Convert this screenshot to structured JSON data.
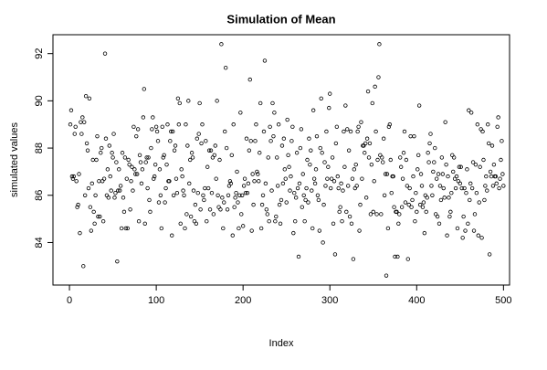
{
  "chart_data": {
    "type": "scatter",
    "title": "Simulation of Mean",
    "x_label": "Index",
    "y_label": "simulated values",
    "x": [
      1,
      2,
      3,
      4,
      5,
      6,
      7,
      8,
      9,
      10,
      11,
      12,
      13,
      14,
      15,
      16,
      17,
      18,
      19,
      20,
      21,
      22,
      23,
      24,
      25,
      26,
      27,
      28,
      29,
      30,
      31,
      32,
      33,
      34,
      35,
      36,
      37,
      38,
      39,
      40,
      41,
      42,
      43,
      44,
      45,
      46,
      47,
      48,
      49,
      50,
      51,
      52,
      53,
      54,
      55,
      56,
      57,
      58,
      59,
      60,
      61,
      62,
      63,
      64,
      65,
      66,
      67,
      68,
      69,
      70,
      71,
      72,
      73,
      74,
      75,
      76,
      77,
      78,
      79,
      80,
      81,
      82,
      83,
      84,
      85,
      86,
      87,
      88,
      89,
      90,
      91,
      92,
      93,
      94,
      95,
      96,
      97,
      98,
      99,
      100,
      101,
      102,
      103,
      104,
      105,
      106,
      107,
      108,
      109,
      110,
      111,
      112,
      113,
      114,
      115,
      116,
      117,
      118,
      119,
      120,
      121,
      122,
      123,
      124,
      125,
      126,
      127,
      128,
      129,
      130,
      131,
      132,
      133,
      134,
      135,
      136,
      137,
      138,
      139,
      140,
      141,
      142,
      143,
      144,
      145,
      146,
      147,
      148,
      149,
      150,
      151,
      152,
      153,
      154,
      155,
      156,
      157,
      158,
      159,
      160,
      161,
      162,
      163,
      164,
      165,
      166,
      167,
      168,
      169,
      170,
      171,
      172,
      173,
      174,
      175,
      176,
      177,
      178,
      179,
      180,
      181,
      182,
      183,
      184,
      185,
      186,
      187,
      188,
      189,
      190,
      191,
      192,
      193,
      194,
      195,
      196,
      197,
      198,
      199,
      200,
      201,
      202,
      203,
      204,
      205,
      206,
      207,
      208,
      209,
      210,
      211,
      212,
      213,
      214,
      215,
      216,
      217,
      218,
      219,
      220,
      221,
      222,
      223,
      224,
      225,
      226,
      227,
      228,
      229,
      230,
      231,
      232,
      233,
      234,
      235,
      236,
      237,
      238,
      239,
      240,
      241,
      242,
      243,
      244,
      245,
      246,
      247,
      248,
      249,
      250,
      251,
      252,
      253,
      254,
      255,
      256,
      257,
      258,
      259,
      260,
      261,
      262,
      263,
      264,
      265,
      266,
      267,
      268,
      269,
      270,
      271,
      272,
      273,
      274,
      275,
      276,
      277,
      278,
      279,
      280,
      281,
      282,
      283,
      284,
      285,
      286,
      287,
      288,
      289,
      290,
      291,
      292,
      293,
      294,
      295,
      296,
      297,
      298,
      299,
      300,
      301,
      302,
      303,
      304,
      305,
      306,
      307,
      308,
      309,
      310,
      311,
      312,
      313,
      314,
      315,
      316,
      317,
      318,
      319,
      320,
      321,
      322,
      323,
      324,
      325,
      326,
      327,
      328,
      329,
      330,
      331,
      332,
      333,
      334,
      335,
      336,
      337,
      338,
      339,
      340,
      341,
      342,
      343,
      344,
      345,
      346,
      347,
      348,
      349,
      350,
      351,
      352,
      353,
      354,
      355,
      356,
      357,
      358,
      359,
      360,
      361,
      362,
      363,
      364,
      365,
      366,
      367,
      368,
      369,
      370,
      371,
      372,
      373,
      374,
      375,
      376,
      377,
      378,
      379,
      380,
      381,
      382,
      383,
      384,
      385,
      386,
      387,
      388,
      389,
      390,
      391,
      392,
      393,
      394,
      395,
      396,
      397,
      398,
      399,
      400,
      401,
      402,
      403,
      404,
      405,
      406,
      407,
      408,
      409,
      410,
      411,
      412,
      413,
      414,
      415,
      416,
      417,
      418,
      419,
      420,
      421,
      422,
      423,
      424,
      425,
      426,
      427,
      428,
      429,
      430,
      431,
      432,
      433,
      434,
      435,
      436,
      437,
      438,
      439,
      440,
      441,
      442,
      443,
      444,
      445,
      446,
      447,
      448,
      449,
      450,
      451,
      452,
      453,
      454,
      455,
      456,
      457,
      458,
      459,
      460,
      461,
      462,
      463,
      464,
      465,
      466,
      467,
      468,
      469,
      470,
      471,
      472,
      473,
      474,
      475,
      476,
      477,
      478,
      479,
      480,
      481,
      482,
      483,
      484,
      485,
      486,
      487,
      488,
      489,
      490,
      491,
      492,
      493,
      494,
      495,
      496,
      497,
      498,
      499,
      500
    ],
    "values": [
      89.0,
      89.6,
      86.8,
      86.7,
      86.8,
      88.6,
      88.9,
      86.6,
      85.5,
      85.6,
      86.9,
      84.4,
      89.1,
      88.6,
      89.3,
      83.0,
      89.1,
      86.0,
      90.2,
      88.2,
      87.9,
      86.3,
      90.1,
      85.5,
      84.5,
      86.5,
      87.5,
      85.3,
      84.8,
      86.0,
      87.5,
      88.5,
      85.1,
      86.6,
      85.1,
      87.8,
      88.0,
      86.6,
      84.9,
      86.7,
      92.0,
      88.4,
      86.0,
      87.1,
      85.9,
      88.1,
      86.8,
      86.2,
      87.8,
      87.6,
      88.6,
      85.9,
      86.1,
      87.4,
      83.2,
      86.2,
      87.1,
      86.2,
      86.4,
      84.6,
      87.8,
      85.9,
      85.3,
      87.6,
      84.6,
      86.7,
      84.6,
      87.5,
      87.3,
      85.4,
      86.6,
      87.2,
      86.2,
      88.9,
      87.1,
      86.9,
      88.5,
      86.9,
      88.8,
      84.9,
      87.7,
      87.4,
      86.5,
      87.1,
      89.3,
      90.5,
      84.8,
      87.4,
      87.6,
      86.3,
      87.6,
      85.8,
      85.3,
      88.0,
      88.8,
      89.3,
      86.7,
      86.8,
      87.3,
      88.9,
      88.7,
      88.3,
      85.7,
      87.1,
      86.0,
      84.6,
      88.9,
      87.6,
      87.7,
      85.7,
      86.3,
      87.3,
      89.0,
      86.6,
      86.6,
      88.3,
      88.7,
      84.3,
      88.7,
      86.0,
      87.9,
      88.1,
      86.7,
      86.1,
      90.1,
      89.0,
      89.9,
      84.8,
      87.1,
      86.8,
      86.2,
      86.0,
      84.6,
      89.0,
      85.2,
      88.1,
      90.0,
      86.5,
      87.5,
      85.1,
      87.8,
      87.6,
      86.2,
      84.9,
      85.6,
      84.8,
      88.4,
      86.1,
      88.6,
      89.9,
      85.4,
      88.2,
      89.0,
      86.0,
      85.8,
      86.3,
      88.3,
      84.9,
      87.2,
      86.3,
      87.9,
      85.4,
      87.9,
      86.1,
      87.6,
      85.2,
      87.7,
      88.1,
      86.7,
      90.0,
      86.0,
      85.5,
      87.5,
      85.4,
      92.4,
      85.9,
      84.6,
      85.7,
      88.7,
      91.4,
      88.0,
      85.4,
      86.0,
      86.4,
      86.6,
      86.5,
      87.7,
      84.3,
      89.0,
      85.5,
      85.9,
      86.1,
      87.0,
      85.7,
      84.6,
      86.0,
      89.5,
      85.2,
      86.0,
      84.7,
      86.4,
      86.7,
      86.1,
      88.4,
      86.1,
      86.5,
      87.9,
      90.9,
      88.3,
      84.5,
      86.9,
      85.6,
      86.6,
      88.3,
      89.0,
      87.0,
      86.9,
      86.6,
      87.8,
      89.9,
      84.6,
      85.6,
      86.0,
      88.7,
      91.7,
      86.5,
      85.4,
      85.2,
      87.6,
      84.9,
      88.9,
      88.3,
      86.2,
      89.9,
      88.5,
      89.5,
      84.9,
      85.1,
      87.6,
      86.4,
      89.0,
      85.6,
      84.8,
      85.8,
      88.1,
      86.5,
      88.4,
      87.1,
      86.7,
      85.7,
      89.2,
      87.7,
      87.2,
      86.2,
      86.8,
      88.3,
      88.9,
      84.4,
      86.1,
      84.9,
      85.9,
      87.8,
      86.3,
      83.4,
      86.5,
      88.0,
      88.8,
      85.5,
      86.9,
      86.0,
      84.9,
      85.8,
      86.3,
      87.5,
      85.7,
      88.4,
      87.3,
      87.9,
      86.2,
      84.6,
      89.6,
      86.7,
      86.5,
      87.1,
      88.5,
      86.0,
      85.8,
      84.5,
      88.0,
      90.1,
      87.8,
      84.0,
      85.6,
      87.4,
      86.4,
      88.7,
      86.7,
      87.2,
      89.7,
      90.3,
      86.3,
      86.7,
      87.6,
      84.8,
      86.6,
      83.5,
      88.2,
      88.9,
      86.8,
      86.3,
      85.3,
      85.5,
      86.5,
      84.9,
      86.2,
      88.7,
      87.2,
      89.8,
      85.3,
      88.8,
      86.4,
      87.9,
      85.1,
      88.7,
      84.8,
      86.7,
      83.3,
      87.1,
      86.3,
      87.3,
      86.4,
      88.7,
      88.9,
      84.5,
      85.6,
      89.1,
      86.7,
      88.1,
      88.1,
      87.8,
      88.2,
      85.9,
      88.4,
      90.4,
      87.6,
      88.2,
      85.2,
      87.3,
      89.9,
      85.3,
      86.6,
      90.6,
      88.7,
      85.2,
      87.5,
      91.0,
      92.4,
      87.7,
      85.2,
      87.6,
      87.4,
      88.4,
      86.0,
      86.9,
      82.6,
      86.9,
      84.6,
      88.9,
      89.0,
      87.5,
      86.1,
      86.8,
      86.8,
      85.5,
      83.4,
      85.3,
      85.3,
      83.4,
      84.8,
      85.2,
      87.6,
      87.2,
      85.5,
      86.7,
      87.8,
      88.7,
      85.7,
      87.5,
      86.4,
      83.3,
      85.6,
      86.3,
      88.5,
      85.5,
      85.8,
      86.8,
      88.5,
      84.9,
      86.1,
      85.3,
      87.1,
      87.7,
      89.8,
      85.6,
      86.9,
      86.4,
      85.5,
      85.7,
      84.4,
      86.0,
      85.3,
      85.9,
      87.8,
      87.4,
      88.2,
      88.6,
      86.4,
      86.0,
      87.0,
      87.4,
      88.0,
      85.2,
      86.7,
      85.1,
      86.9,
      84.8,
      86.4,
      85.8,
      87.6,
      86.9,
      86.3,
      85.9,
      89.1,
      87.3,
      84.3,
      86.8,
      85.9,
      85.1,
      85.3,
      86.1,
      87.7,
      87.0,
      87.6,
      86.7,
      86.3,
      86.8,
      84.6,
      86.6,
      87.2,
      86.5,
      87.2,
      86.3,
      84.2,
      85.1,
      86.3,
      84.5,
      86.1,
      87.1,
      84.8,
      89.6,
      85.8,
      86.5,
      89.5,
      86.3,
      87.4,
      84.5,
      85.2,
      87.3,
      86.1,
      89.0,
      84.3,
      85.7,
      87.2,
      88.8,
      84.2,
      88.7,
      87.5,
      85.8,
      86.4,
      86.8,
      86.2,
      89.0,
      88.2,
      83.5,
      87.0,
      86.8,
      88.1,
      86.4,
      87.3,
      86.8,
      86.8,
      86.5,
      88.9,
      89.3,
      86.3,
      86.7,
      87.5,
      88.3,
      86.9,
      86.4
    ],
    "color": "#000000",
    "xlim": [
      -19,
      507
    ],
    "ylim": [
      82.2,
      92.8
    ],
    "xticks": [
      0,
      100,
      200,
      300,
      400,
      500
    ],
    "yticks": [
      84,
      86,
      88,
      90,
      92
    ]
  }
}
